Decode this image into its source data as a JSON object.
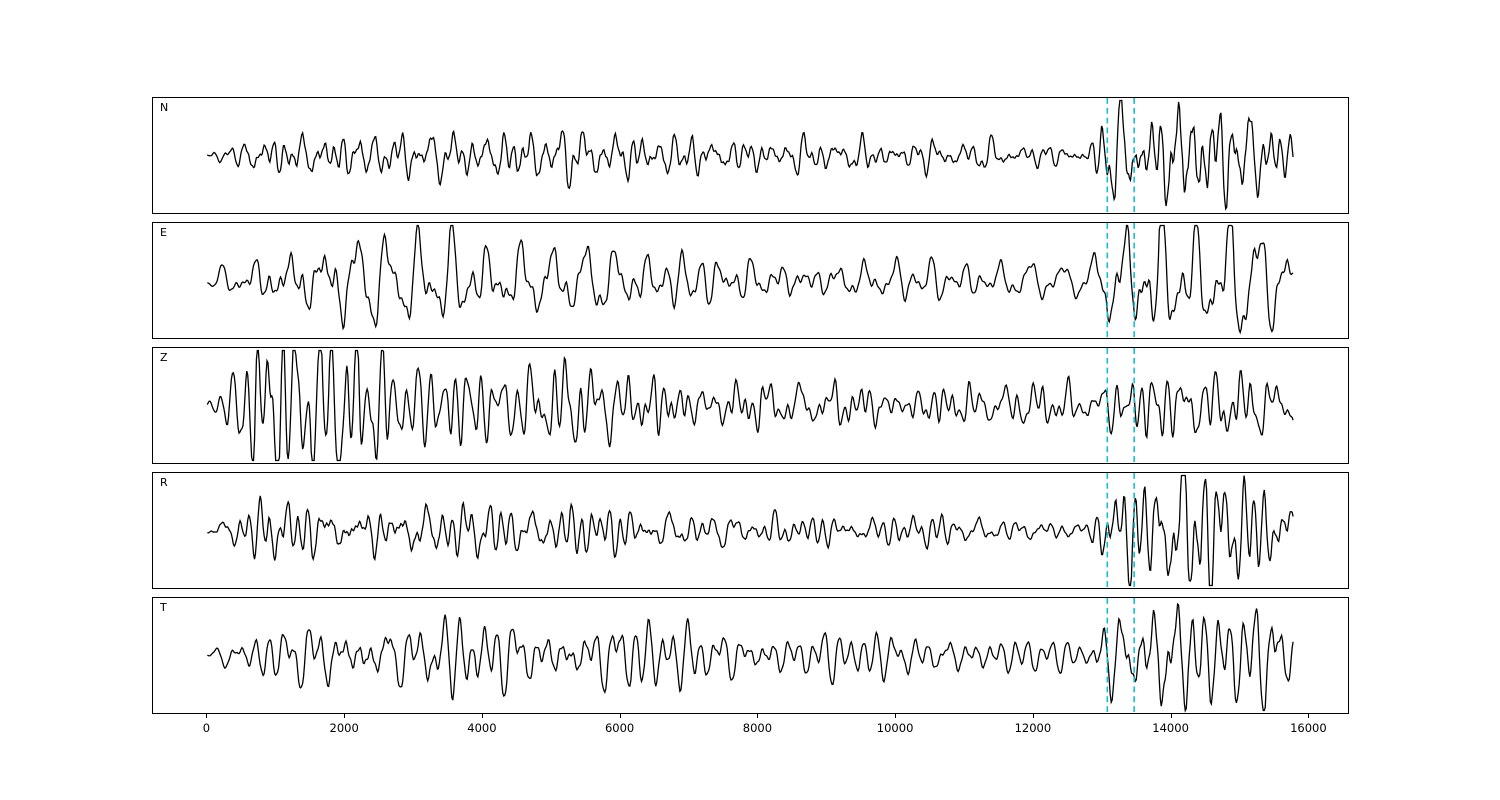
{
  "figure": {
    "background": "#ffffff",
    "trace_color": "#000000",
    "marker_color": "#17becf",
    "marker_style": "dashed"
  },
  "chart_data": {
    "type": "line",
    "title": "",
    "xlabel": "",
    "ylabel": "",
    "legend": "none",
    "grid": false,
    "x_ticks": [
      0,
      2000,
      4000,
      6000,
      8000,
      10000,
      12000,
      14000,
      16000
    ],
    "x_tick_labels": [
      "0",
      "2000",
      "4000",
      "6000",
      "8000",
      "10000",
      "12000",
      "14000",
      "16000"
    ],
    "xlim": [
      -790,
      16590
    ],
    "x_start": 0,
    "x_end": 15800,
    "pick_lines_x": [
      13090,
      13480
    ],
    "panels": [
      {
        "label": "N",
        "seed": 3,
        "envelope": [
          [
            0,
            0.04
          ],
          [
            300,
            0.1
          ],
          [
            700,
            0.28
          ],
          [
            1500,
            0.3
          ],
          [
            2500,
            0.32
          ],
          [
            3500,
            0.3
          ],
          [
            4500,
            0.34
          ],
          [
            5500,
            0.36
          ],
          [
            6500,
            0.3
          ],
          [
            7500,
            0.26
          ],
          [
            8500,
            0.24
          ],
          [
            10000,
            0.22
          ],
          [
            11500,
            0.18
          ],
          [
            12800,
            0.14
          ],
          [
            13050,
            0.55
          ],
          [
            13300,
            0.7
          ],
          [
            13600,
            0.5
          ],
          [
            13900,
            0.65
          ],
          [
            14200,
            1.0
          ],
          [
            14600,
            0.75
          ],
          [
            15000,
            0.65
          ],
          [
            15400,
            0.5
          ],
          [
            15800,
            0.4
          ]
        ]
      },
      {
        "label": "E",
        "seed": 7,
        "envelope": [
          [
            0,
            0.06
          ],
          [
            400,
            0.25
          ],
          [
            900,
            0.5
          ],
          [
            1400,
            0.62
          ],
          [
            2000,
            0.68
          ],
          [
            2600,
            0.55
          ],
          [
            3200,
            0.6
          ],
          [
            3800,
            0.55
          ],
          [
            4400,
            0.58
          ],
          [
            5200,
            0.5
          ],
          [
            6000,
            0.48
          ],
          [
            7000,
            0.42
          ],
          [
            8000,
            0.38
          ],
          [
            9000,
            0.34
          ],
          [
            10000,
            0.32
          ],
          [
            11000,
            0.3
          ],
          [
            12000,
            0.26
          ],
          [
            12800,
            0.22
          ],
          [
            13100,
            0.65
          ],
          [
            13400,
            0.8
          ],
          [
            13800,
            1.0
          ],
          [
            14200,
            0.7
          ],
          [
            14600,
            0.75
          ],
          [
            15000,
            0.8
          ],
          [
            15400,
            0.65
          ],
          [
            15800,
            0.5
          ]
        ]
      },
      {
        "label": "Z",
        "seed": 13,
        "envelope": [
          [
            0,
            0.05
          ],
          [
            300,
            0.35
          ],
          [
            600,
            0.8
          ],
          [
            900,
            1.0
          ],
          [
            1300,
            0.85
          ],
          [
            1600,
            1.0
          ],
          [
            2000,
            0.9
          ],
          [
            2400,
            0.65
          ],
          [
            2900,
            0.55
          ],
          [
            3500,
            0.5
          ],
          [
            4200,
            0.45
          ],
          [
            5000,
            0.5
          ],
          [
            5600,
            0.6
          ],
          [
            6200,
            0.5
          ],
          [
            7000,
            0.42
          ],
          [
            8000,
            0.38
          ],
          [
            9000,
            0.36
          ],
          [
            10000,
            0.34
          ],
          [
            11000,
            0.32
          ],
          [
            12000,
            0.3
          ],
          [
            12800,
            0.3
          ],
          [
            13200,
            0.42
          ],
          [
            13600,
            0.5
          ],
          [
            14200,
            0.65
          ],
          [
            14700,
            0.5
          ],
          [
            15200,
            0.45
          ],
          [
            15800,
            0.4
          ]
        ]
      },
      {
        "label": "R",
        "seed": 21,
        "envelope": [
          [
            0,
            0.04
          ],
          [
            400,
            0.2
          ],
          [
            900,
            0.32
          ],
          [
            1500,
            0.36
          ],
          [
            2200,
            0.32
          ],
          [
            3000,
            0.34
          ],
          [
            3800,
            0.3
          ],
          [
            4600,
            0.28
          ],
          [
            5400,
            0.3
          ],
          [
            6200,
            0.26
          ],
          [
            7000,
            0.22
          ],
          [
            8000,
            0.2
          ],
          [
            9000,
            0.18
          ],
          [
            10000,
            0.17
          ],
          [
            11000,
            0.16
          ],
          [
            12000,
            0.15
          ],
          [
            12800,
            0.13
          ],
          [
            13100,
            0.5
          ],
          [
            13400,
            0.6
          ],
          [
            13800,
            0.55
          ],
          [
            14200,
            1.0
          ],
          [
            14600,
            0.8
          ],
          [
            15000,
            0.55
          ],
          [
            15400,
            0.45
          ],
          [
            15800,
            0.35
          ]
        ]
      },
      {
        "label": "T",
        "seed": 29,
        "envelope": [
          [
            0,
            0.04
          ],
          [
            400,
            0.2
          ],
          [
            900,
            0.35
          ],
          [
            1500,
            0.42
          ],
          [
            2200,
            0.48
          ],
          [
            3000,
            0.42
          ],
          [
            3600,
            0.5
          ],
          [
            4200,
            0.45
          ],
          [
            5000,
            0.42
          ],
          [
            6000,
            0.46
          ],
          [
            7000,
            0.38
          ],
          [
            8000,
            0.32
          ],
          [
            9000,
            0.3
          ],
          [
            10000,
            0.28
          ],
          [
            11000,
            0.26
          ],
          [
            12000,
            0.22
          ],
          [
            12800,
            0.18
          ],
          [
            13100,
            0.55
          ],
          [
            13500,
            0.7
          ],
          [
            13900,
            1.0
          ],
          [
            14300,
            0.85
          ],
          [
            14700,
            0.7
          ],
          [
            15100,
            0.65
          ],
          [
            15500,
            0.75
          ],
          [
            15800,
            0.45
          ]
        ]
      }
    ]
  }
}
